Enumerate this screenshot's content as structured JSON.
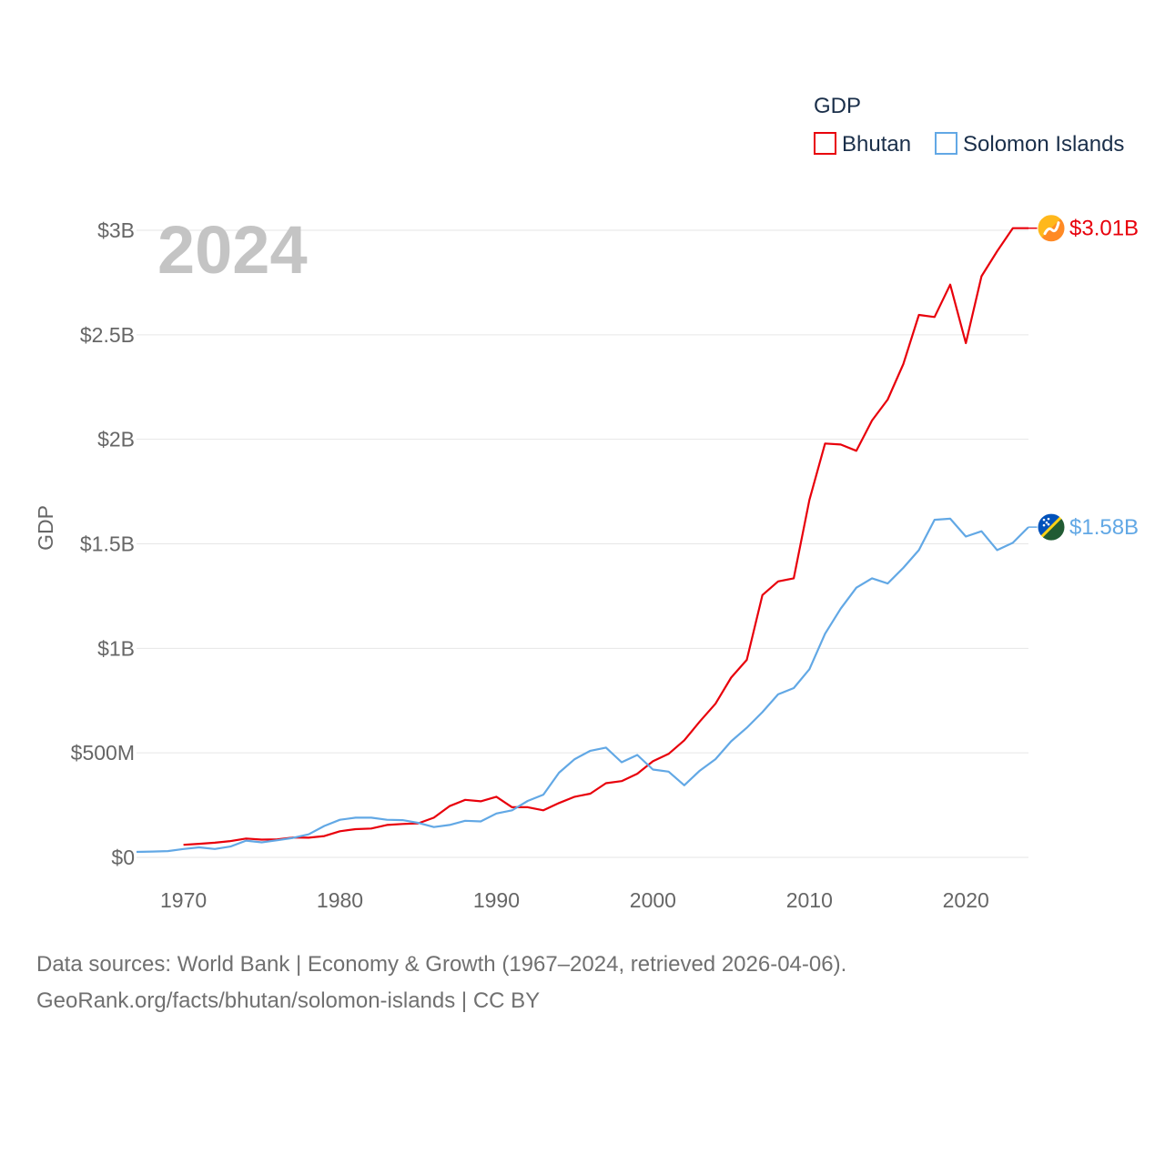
{
  "chart_data": {
    "type": "line",
    "title": "GDP",
    "year_label": "2024",
    "ylabel": "GDP",
    "xlabel": "",
    "xlim": [
      1967,
      2024
    ],
    "ylim": [
      0,
      3000000000
    ],
    "y_ticks": [
      {
        "value": 0,
        "label": "$0"
      },
      {
        "value": 500000000,
        "label": "$500M"
      },
      {
        "value": 1000000000,
        "label": "$1B"
      },
      {
        "value": 1500000000,
        "label": "$1.5B"
      },
      {
        "value": 2000000000,
        "label": "$2B"
      },
      {
        "value": 2500000000,
        "label": "$2.5B"
      },
      {
        "value": 3000000000,
        "label": "$3B"
      }
    ],
    "x_ticks": [
      {
        "value": 1970,
        "label": "1970"
      },
      {
        "value": 1980,
        "label": "1980"
      },
      {
        "value": 1990,
        "label": "1990"
      },
      {
        "value": 2000,
        "label": "2000"
      },
      {
        "value": 2010,
        "label": "2010"
      },
      {
        "value": 2020,
        "label": "2020"
      }
    ],
    "legend": {
      "title": "GDP",
      "position": "top-right"
    },
    "series": [
      {
        "name": "Bhutan",
        "color": "#e8000b",
        "end_label": "$3.01B",
        "flag_icon": "bhutan-flag-icon",
        "x": [
          1970,
          1971,
          1972,
          1973,
          1974,
          1975,
          1976,
          1977,
          1978,
          1979,
          1980,
          1981,
          1982,
          1983,
          1984,
          1985,
          1986,
          1987,
          1988,
          1989,
          1990,
          1991,
          1992,
          1993,
          1994,
          1995,
          1996,
          1997,
          1998,
          1999,
          2000,
          2001,
          2002,
          2003,
          2004,
          2005,
          2006,
          2007,
          2008,
          2009,
          2010,
          2011,
          2012,
          2013,
          2014,
          2015,
          2016,
          2017,
          2018,
          2019,
          2020,
          2021,
          2022,
          2023,
          2024
        ],
        "values": [
          60000000,
          65000000,
          70000000,
          78000000,
          90000000,
          85000000,
          86000000,
          95000000,
          94000000,
          102000000,
          125000000,
          135000000,
          138000000,
          155000000,
          160000000,
          163000000,
          190000000,
          245000000,
          275000000,
          268000000,
          290000000,
          240000000,
          240000000,
          225000000,
          260000000,
          290000000,
          305000000,
          355000000,
          365000000,
          400000000,
          460000000,
          495000000,
          560000000,
          650000000,
          735000000,
          860000000,
          945000000,
          1255000000,
          1320000000,
          1335000000,
          1710000000,
          1980000000,
          1975000000,
          1945000000,
          2090000000,
          2190000000,
          2360000000,
          2595000000,
          2585000000,
          2740000000,
          2460000000,
          2780000000,
          2900000000,
          3010000000,
          3010000000
        ]
      },
      {
        "name": "Solomon Islands",
        "color": "#62a8e5",
        "end_label": "$1.58B",
        "flag_icon": "solomon-islands-flag-icon",
        "x": [
          1967,
          1968,
          1969,
          1970,
          1971,
          1972,
          1973,
          1974,
          1975,
          1976,
          1977,
          1978,
          1979,
          1980,
          1981,
          1982,
          1983,
          1984,
          1985,
          1986,
          1987,
          1988,
          1989,
          1990,
          1991,
          1992,
          1993,
          1994,
          1995,
          1996,
          1997,
          1998,
          1999,
          2000,
          2001,
          2002,
          2003,
          2004,
          2005,
          2006,
          2007,
          2008,
          2009,
          2010,
          2011,
          2012,
          2013,
          2014,
          2015,
          2016,
          2017,
          2018,
          2019,
          2020,
          2021,
          2022,
          2023,
          2024
        ],
        "values": [
          26000000,
          28000000,
          30000000,
          40000000,
          48000000,
          40000000,
          52000000,
          80000000,
          72000000,
          82000000,
          93000000,
          110000000,
          150000000,
          180000000,
          190000000,
          190000000,
          180000000,
          178000000,
          165000000,
          145000000,
          155000000,
          175000000,
          172000000,
          210000000,
          225000000,
          270000000,
          300000000,
          405000000,
          470000000,
          510000000,
          525000000,
          455000000,
          490000000,
          420000000,
          410000000,
          345000000,
          415000000,
          470000000,
          555000000,
          620000000,
          695000000,
          780000000,
          810000000,
          900000000,
          1070000000,
          1190000000,
          1290000000,
          1335000000,
          1310000000,
          1385000000,
          1470000000,
          1615000000,
          1620000000,
          1535000000,
          1560000000,
          1470000000,
          1505000000,
          1580000000
        ]
      }
    ]
  },
  "footer": {
    "line1": "Data sources: World Bank | Economy & Growth (1967–2024, retrieved 2026-04-06).",
    "line2": "GeoRank.org/facts/bhutan/solomon-islands | CC BY"
  }
}
